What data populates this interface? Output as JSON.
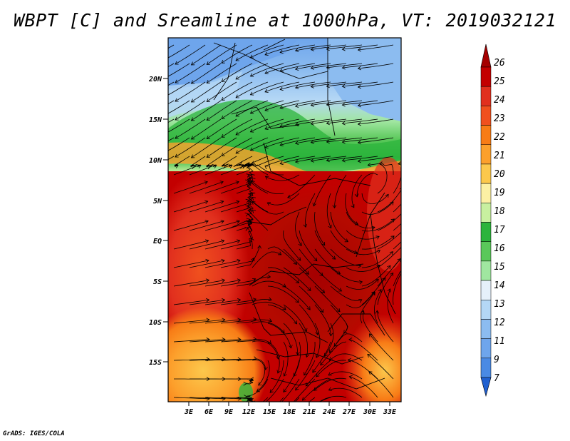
{
  "title": "WBPT [C] and Sreamline at 1000hPa, VT: 2019032121",
  "map": {
    "lat_labels": [
      "20N",
      "15N",
      "10N",
      "5N",
      "EQ",
      "5S",
      "10S",
      "15S"
    ],
    "lon_labels": [
      "3E",
      "6E",
      "9E",
      "12E",
      "15E",
      "18E",
      "21E",
      "24E",
      "27E",
      "30E",
      "33E"
    ],
    "field": "wet-bulb potential temperature",
    "units": "C",
    "level": "1000hPa",
    "overlay": "streamlines"
  },
  "colorbar": {
    "labels": [
      "26",
      "25",
      "24",
      "23",
      "22",
      "21",
      "20",
      "19",
      "18",
      "17",
      "16",
      "15",
      "14",
      "13",
      "12",
      "11",
      "9",
      "7"
    ],
    "colors": [
      "#a50000",
      "#c30000",
      "#e1301e",
      "#f0501e",
      "#f87c16",
      "#fca02c",
      "#fcc84c",
      "#fcf0a4",
      "#c8f0a0",
      "#2cb43c",
      "#5ac85a",
      "#a0e6a0",
      "#e6f0fa",
      "#b4d7f5",
      "#8cbcf0",
      "#6ea5ec",
      "#4a8ae4",
      "#2060d0"
    ]
  },
  "footer": "GrADS: IGES/COLA"
}
